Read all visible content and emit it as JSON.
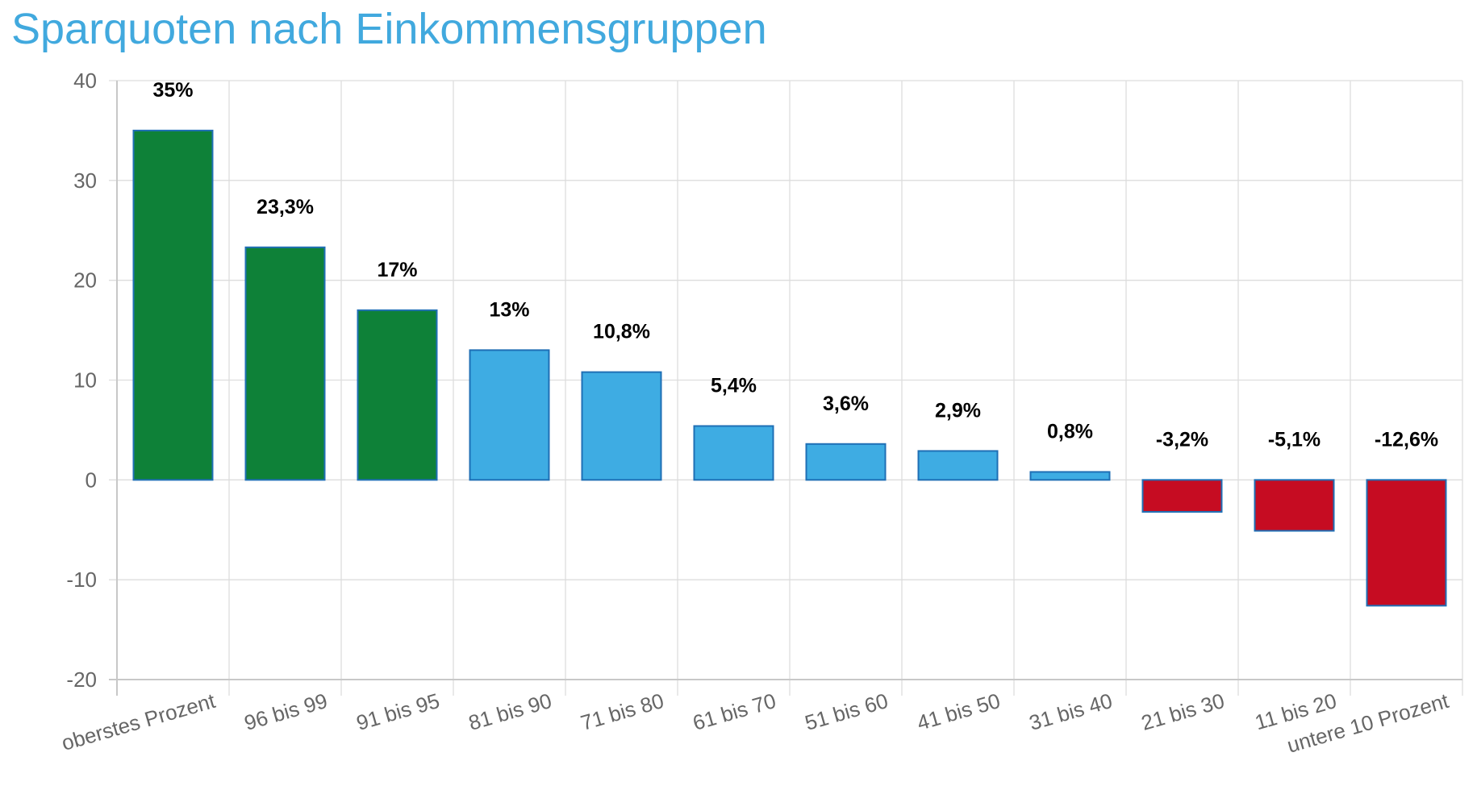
{
  "chart_data": {
    "type": "bar",
    "title": "Sparquoten nach Einkommensgruppen",
    "xlabel": "",
    "ylabel": "",
    "ylim": [
      -20,
      40
    ],
    "yticks": [
      40,
      30,
      20,
      10,
      0,
      -10,
      -20
    ],
    "grid": true,
    "categories": [
      "oberstes Prozent",
      "96 bis 99",
      "91 bis 95",
      "81 bis 90",
      "71 bis 80",
      "61 bis 70",
      "51 bis 60",
      "41 bis 50",
      "31 bis 40",
      "21 bis 30",
      "11 bis 20",
      "untere 10 Prozent"
    ],
    "values": [
      35,
      23.3,
      17,
      13,
      10.8,
      5.4,
      3.6,
      2.9,
      0.8,
      -3.2,
      -5.1,
      -12.6
    ],
    "data_labels": [
      "35%",
      "23,3%",
      "17%",
      "13%",
      "10,8%",
      "5,4%",
      "3,6%",
      "2,9%",
      "0,8%",
      "-3,2%",
      "-5,1%",
      "-12,6%"
    ],
    "bar_colors": [
      "#0e8138",
      "#0e8138",
      "#0e8138",
      "#3eace3",
      "#3eace3",
      "#3eace3",
      "#3eace3",
      "#3eace3",
      "#3eace3",
      "#c60c22",
      "#c60c22",
      "#c60c22"
    ]
  },
  "colors": {
    "title": "#41a9de",
    "grid": "#dddddd",
    "axis": "#c8c8c8",
    "tick_text": "#666666",
    "label_text": "#000000",
    "bar_border": "#1f6fb5"
  }
}
